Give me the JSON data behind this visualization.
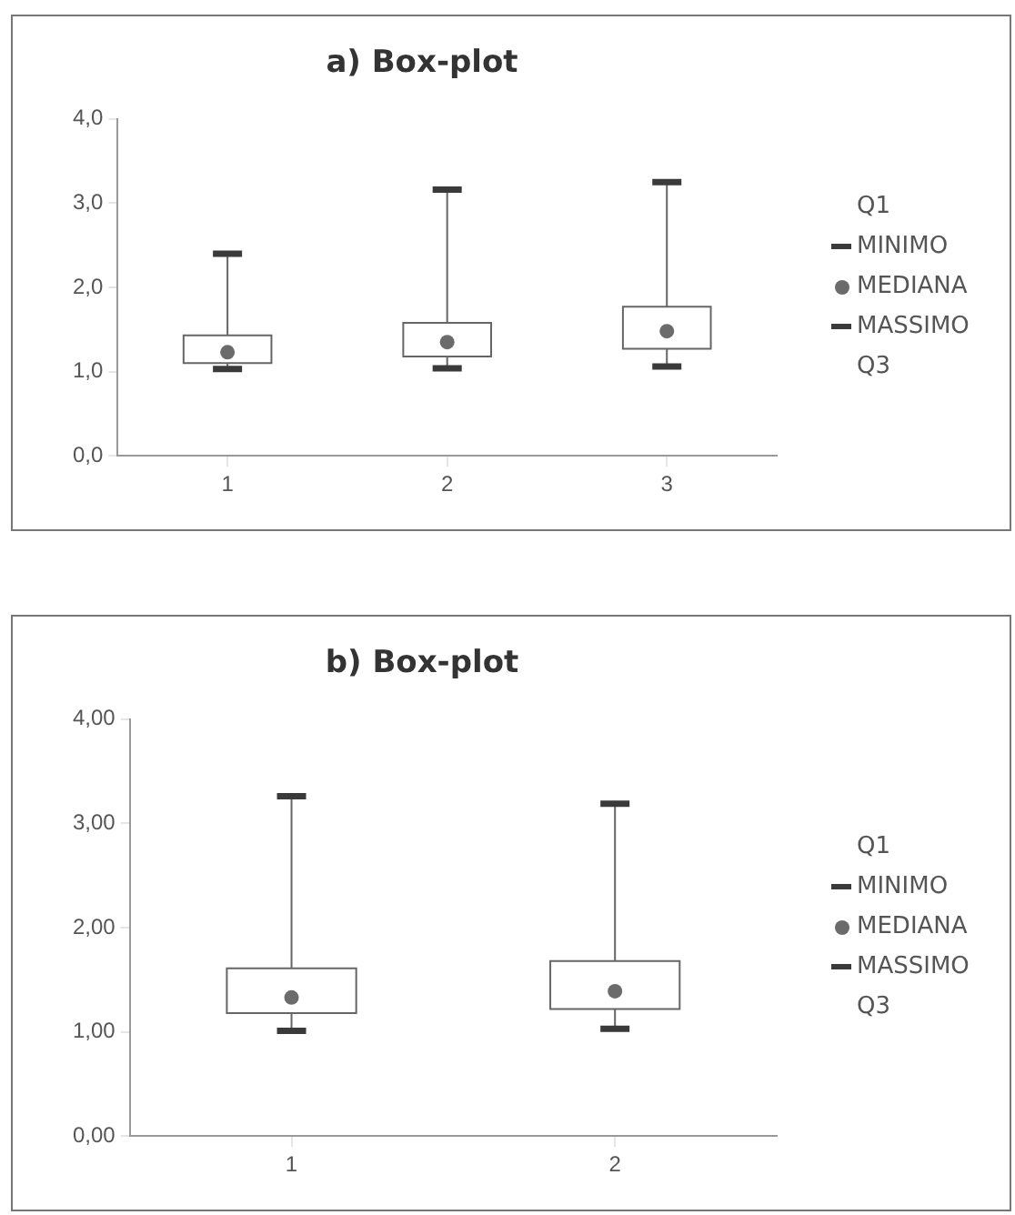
{
  "chart_data": [
    {
      "type": "box",
      "title": "a) Box-plot",
      "categories": [
        "1",
        "2",
        "3"
      ],
      "boxes": [
        {
          "low": 1.03,
          "q1": 1.1,
          "median": 1.23,
          "q3": 1.43,
          "high": 2.4
        },
        {
          "low": 1.04,
          "q1": 1.18,
          "median": 1.35,
          "q3": 1.58,
          "high": 3.16
        },
        {
          "low": 1.06,
          "q1": 1.27,
          "median": 1.48,
          "q3": 1.77,
          "high": 3.25
        }
      ],
      "annotations": [
        "Q1",
        "MINIMO",
        "MEDIANA",
        "MASSIMO",
        "Q3"
      ],
      "ylim": [
        0,
        4
      ],
      "yticks": [
        {
          "value": 0,
          "label": "0,0"
        },
        {
          "value": 1,
          "label": "1,0"
        },
        {
          "value": 2,
          "label": "2,0"
        },
        {
          "value": 3,
          "label": "3,0"
        },
        {
          "value": 4,
          "label": "4,0"
        }
      ]
    },
    {
      "type": "box",
      "title": "b) Box-plot",
      "categories": [
        "1",
        "2"
      ],
      "boxes": [
        {
          "low": 1.01,
          "q1": 1.18,
          "median": 1.33,
          "q3": 1.61,
          "high": 3.26
        },
        {
          "low": 1.03,
          "q1": 1.22,
          "median": 1.39,
          "q3": 1.68,
          "high": 3.19
        }
      ],
      "annotations": [
        "Q1",
        "MINIMO",
        "MEDIANA",
        "MASSIMO",
        "Q3"
      ],
      "ylim": [
        0,
        4
      ],
      "yticks": [
        {
          "value": 0,
          "label": "0,00"
        },
        {
          "value": 1,
          "label": "1,00"
        },
        {
          "value": 2,
          "label": "2,00"
        },
        {
          "value": 3,
          "label": "3,00"
        },
        {
          "value": 4,
          "label": "4,00"
        }
      ]
    }
  ]
}
